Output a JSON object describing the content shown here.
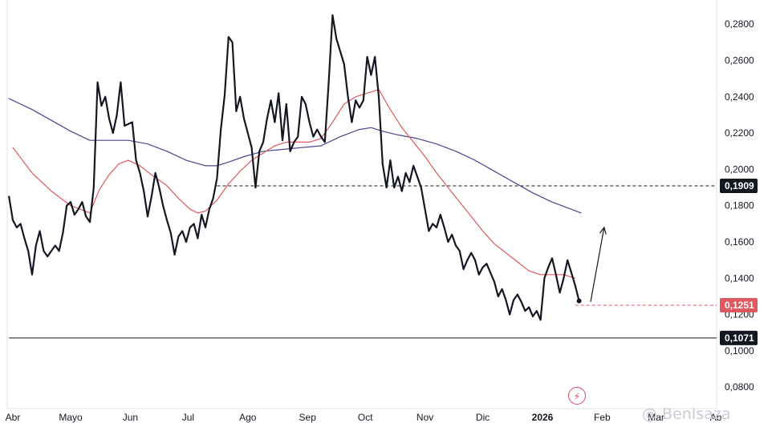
{
  "chart_data": {
    "type": "line",
    "title": "",
    "xlabel": "",
    "ylabel": "",
    "ylim": [
      0.072,
      0.292
    ],
    "y_ticks": [
      "0,0800",
      "0,1000",
      "0,1200",
      "0,1400",
      "0,1600",
      "0,1800",
      "0,2000",
      "0,2200",
      "0,2400",
      "0,2600",
      "0,2800"
    ],
    "y_tick_values": [
      0.08,
      0.1,
      0.12,
      0.14,
      0.16,
      0.18,
      0.2,
      0.22,
      0.24,
      0.26,
      0.28
    ],
    "x_ticks": [
      {
        "label": "Abr",
        "pos": 0,
        "bold": false
      },
      {
        "label": "Mayo",
        "pos": 30,
        "bold": false
      },
      {
        "label": "Jun",
        "pos": 61,
        "bold": false
      },
      {
        "label": "Jul",
        "pos": 91,
        "bold": false
      },
      {
        "label": "Ago",
        "pos": 122,
        "bold": false
      },
      {
        "label": "Sep",
        "pos": 153,
        "bold": false
      },
      {
        "label": "Oct",
        "pos": 183,
        "bold": false
      },
      {
        "label": "Nov",
        "pos": 214,
        "bold": false
      },
      {
        "label": "Dic",
        "pos": 244,
        "bold": false
      },
      {
        "label": "2026",
        "pos": 275,
        "bold": true
      },
      {
        "label": "Feb",
        "pos": 306,
        "bold": false
      },
      {
        "label": "Mar",
        "pos": 334,
        "bold": false
      },
      {
        "label": "Ab",
        "pos": 365,
        "bold": false
      }
    ],
    "x_range": [
      -2,
      367
    ],
    "series": [
      {
        "role": "price",
        "color": "#131722",
        "points": [
          [
            -2,
            0.185
          ],
          [
            0,
            0.172
          ],
          [
            2,
            0.168
          ],
          [
            4,
            0.17
          ],
          [
            6,
            0.162
          ],
          [
            8,
            0.155
          ],
          [
            10,
            0.142
          ],
          [
            12,
            0.158
          ],
          [
            14,
            0.166
          ],
          [
            16,
            0.155
          ],
          [
            18,
            0.152
          ],
          [
            20,
            0.155
          ],
          [
            22,
            0.158
          ],
          [
            24,
            0.155
          ],
          [
            26,
            0.165
          ],
          [
            28,
            0.18
          ],
          [
            30,
            0.182
          ],
          [
            32,
            0.175
          ],
          [
            34,
            0.178
          ],
          [
            36,
            0.182
          ],
          [
            38,
            0.174
          ],
          [
            40,
            0.171
          ],
          [
            42,
            0.19
          ],
          [
            44,
            0.248
          ],
          [
            46,
            0.235
          ],
          [
            48,
            0.24
          ],
          [
            50,
            0.228
          ],
          [
            52,
            0.22
          ],
          [
            54,
            0.23
          ],
          [
            56,
            0.248
          ],
          [
            58,
            0.224
          ],
          [
            60,
            0.225
          ],
          [
            62,
            0.226
          ],
          [
            64,
            0.205
          ],
          [
            66,
            0.198
          ],
          [
            68,
            0.188
          ],
          [
            70,
            0.174
          ],
          [
            72,
            0.185
          ],
          [
            74,
            0.198
          ],
          [
            76,
            0.19
          ],
          [
            78,
            0.18
          ],
          [
            80,
            0.172
          ],
          [
            82,
            0.165
          ],
          [
            84,
            0.153
          ],
          [
            86,
            0.163
          ],
          [
            88,
            0.166
          ],
          [
            90,
            0.16
          ],
          [
            92,
            0.168
          ],
          [
            94,
            0.17
          ],
          [
            96,
            0.162
          ],
          [
            98,
            0.175
          ],
          [
            100,
            0.168
          ],
          [
            102,
            0.178
          ],
          [
            104,
            0.184
          ],
          [
            106,
            0.195
          ],
          [
            108,
            0.222
          ],
          [
            110,
            0.241
          ],
          [
            112,
            0.273
          ],
          [
            114,
            0.27
          ],
          [
            116,
            0.232
          ],
          [
            118,
            0.24
          ],
          [
            120,
            0.228
          ],
          [
            122,
            0.22
          ],
          [
            124,
            0.212
          ],
          [
            126,
            0.19
          ],
          [
            128,
            0.21
          ],
          [
            130,
            0.215
          ],
          [
            132,
            0.228
          ],
          [
            134,
            0.238
          ],
          [
            136,
            0.226
          ],
          [
            138,
            0.242
          ],
          [
            140,
            0.216
          ],
          [
            142,
            0.236
          ],
          [
            144,
            0.21
          ],
          [
            146,
            0.215
          ],
          [
            148,
            0.218
          ],
          [
            150,
            0.24
          ],
          [
            152,
            0.236
          ],
          [
            154,
            0.226
          ],
          [
            156,
            0.218
          ],
          [
            158,
            0.222
          ],
          [
            160,
            0.218
          ],
          [
            162,
            0.215
          ],
          [
            164,
            0.248
          ],
          [
            166,
            0.285
          ],
          [
            168,
            0.272
          ],
          [
            170,
            0.265
          ],
          [
            172,
            0.258
          ],
          [
            174,
            0.24
          ],
          [
            176,
            0.226
          ],
          [
            178,
            0.238
          ],
          [
            180,
            0.234
          ],
          [
            182,
            0.238
          ],
          [
            184,
            0.262
          ],
          [
            186,
            0.252
          ],
          [
            188,
            0.262
          ],
          [
            190,
            0.24
          ],
          [
            192,
            0.203
          ],
          [
            194,
            0.19
          ],
          [
            196,
            0.205
          ],
          [
            198,
            0.19
          ],
          [
            200,
            0.196
          ],
          [
            202,
            0.188
          ],
          [
            204,
            0.198
          ],
          [
            206,
            0.193
          ],
          [
            208,
            0.202
          ],
          [
            210,
            0.196
          ],
          [
            212,
            0.19
          ],
          [
            214,
            0.178
          ],
          [
            216,
            0.166
          ],
          [
            218,
            0.17
          ],
          [
            220,
            0.168
          ],
          [
            222,
            0.175
          ],
          [
            224,
            0.168
          ],
          [
            226,
            0.16
          ],
          [
            228,
            0.164
          ],
          [
            230,
            0.158
          ],
          [
            232,
            0.155
          ],
          [
            234,
            0.145
          ],
          [
            236,
            0.15
          ],
          [
            238,
            0.154
          ],
          [
            240,
            0.15
          ],
          [
            242,
            0.142
          ],
          [
            244,
            0.146
          ],
          [
            246,
            0.148
          ],
          [
            248,
            0.143
          ],
          [
            250,
            0.138
          ],
          [
            252,
            0.13
          ],
          [
            254,
            0.134
          ],
          [
            256,
            0.128
          ],
          [
            258,
            0.12
          ],
          [
            260,
            0.128
          ],
          [
            262,
            0.131
          ],
          [
            264,
            0.127
          ],
          [
            266,
            0.122
          ],
          [
            268,
            0.124
          ],
          [
            270,
            0.119
          ],
          [
            272,
            0.122
          ],
          [
            274,
            0.117
          ],
          [
            276,
            0.14
          ],
          [
            278,
            0.146
          ],
          [
            280,
            0.151
          ],
          [
            282,
            0.142
          ],
          [
            284,
            0.132
          ],
          [
            286,
            0.14
          ],
          [
            288,
            0.15
          ],
          [
            290,
            0.143
          ],
          [
            292,
            0.136
          ],
          [
            294,
            0.1275
          ]
        ]
      },
      {
        "role": "ma-red",
        "color": "#e0585f",
        "points": [
          [
            0,
            0.212
          ],
          [
            10,
            0.198
          ],
          [
            20,
            0.188
          ],
          [
            30,
            0.18
          ],
          [
            40,
            0.176
          ],
          [
            45,
            0.189
          ],
          [
            50,
            0.197
          ],
          [
            55,
            0.203
          ],
          [
            60,
            0.205
          ],
          [
            66,
            0.202
          ],
          [
            72,
            0.197
          ],
          [
            80,
            0.191
          ],
          [
            86,
            0.184
          ],
          [
            92,
            0.178
          ],
          [
            96,
            0.176
          ],
          [
            100,
            0.177
          ],
          [
            106,
            0.183
          ],
          [
            112,
            0.192
          ],
          [
            118,
            0.199
          ],
          [
            124,
            0.205
          ],
          [
            130,
            0.209
          ],
          [
            136,
            0.213
          ],
          [
            142,
            0.215
          ],
          [
            148,
            0.215
          ],
          [
            154,
            0.215
          ],
          [
            160,
            0.217
          ],
          [
            166,
            0.226
          ],
          [
            172,
            0.236
          ],
          [
            178,
            0.24
          ],
          [
            184,
            0.242
          ],
          [
            190,
            0.244
          ],
          [
            196,
            0.233
          ],
          [
            202,
            0.223
          ],
          [
            208,
            0.215
          ],
          [
            214,
            0.207
          ],
          [
            220,
            0.198
          ],
          [
            226,
            0.19
          ],
          [
            232,
            0.182
          ],
          [
            238,
            0.174
          ],
          [
            244,
            0.166
          ],
          [
            250,
            0.159
          ],
          [
            256,
            0.154
          ],
          [
            262,
            0.149
          ],
          [
            268,
            0.144
          ],
          [
            274,
            0.142
          ],
          [
            280,
            0.142
          ],
          [
            286,
            0.142
          ],
          [
            292,
            0.14
          ]
        ]
      },
      {
        "role": "ma-blue",
        "color": "#45468c",
        "points": [
          [
            -2,
            0.239
          ],
          [
            10,
            0.233
          ],
          [
            20,
            0.227
          ],
          [
            30,
            0.221
          ],
          [
            40,
            0.216
          ],
          [
            50,
            0.216
          ],
          [
            60,
            0.216
          ],
          [
            70,
            0.214
          ],
          [
            80,
            0.21
          ],
          [
            90,
            0.205
          ],
          [
            100,
            0.202
          ],
          [
            106,
            0.202
          ],
          [
            112,
            0.204
          ],
          [
            120,
            0.207
          ],
          [
            130,
            0.21
          ],
          [
            140,
            0.211
          ],
          [
            150,
            0.212
          ],
          [
            160,
            0.213
          ],
          [
            170,
            0.218
          ],
          [
            180,
            0.222
          ],
          [
            186,
            0.223
          ],
          [
            192,
            0.221
          ],
          [
            200,
            0.219
          ],
          [
            210,
            0.217
          ],
          [
            220,
            0.214
          ],
          [
            230,
            0.21
          ],
          [
            240,
            0.205
          ],
          [
            250,
            0.199
          ],
          [
            260,
            0.193
          ],
          [
            270,
            0.187
          ],
          [
            280,
            0.182
          ],
          [
            290,
            0.178
          ],
          [
            295,
            0.176
          ]
        ]
      }
    ],
    "levels": [
      {
        "value": 0.1909,
        "label": "0,1909",
        "color": "#131722",
        "style": "dashed",
        "from": 106
      },
      {
        "value": 0.1251,
        "label": "0,1251",
        "color": "#e0585f",
        "style": "dashed",
        "from": 292
      },
      {
        "value": 0.1071,
        "label": "0,1071",
        "color": "#131722",
        "style": "solid",
        "from": -2
      }
    ],
    "annotation_arrow": {
      "from": [
        300,
        0.127
      ],
      "to": [
        307,
        0.168
      ]
    }
  },
  "watermark": "@ BenIsaza",
  "replay_icon": "lightning-bolt-icon"
}
